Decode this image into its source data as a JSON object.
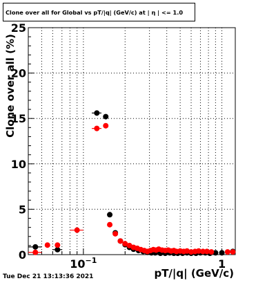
{
  "footer": {
    "timestamp": "Tue Dec 21 13:13:36 2021"
  },
  "colors": {
    "axes": "#000000",
    "grid": "#000000",
    "series_black": "#000000",
    "series_red": "#ff0000"
  },
  "chart_data": {
    "type": "scatter",
    "title": "Clone  over all for Global vs pT/|q| (GeV/c) at | η | <= 1.0",
    "xlabel": "pT/|q| (GeV/c)",
    "ylabel": "Clone  over all (%)",
    "x_scale": "log",
    "xlim": [
      0.04,
      1.25
    ],
    "ylim": [
      0,
      25
    ],
    "grid": true,
    "legend": "none",
    "y_ticks": [
      0,
      5,
      10,
      15,
      20,
      25
    ],
    "x_tick_labels": [
      {
        "value": 0.1,
        "base": "10",
        "exp": "−1"
      },
      {
        "value": 1,
        "label": "1"
      }
    ],
    "series": [
      {
        "color": "#000000",
        "points": [
          {
            "x": 0.045,
            "y": 0.85,
            "xlo": 0.04,
            "xhi": 0.05
          },
          {
            "x": 0.065,
            "y": 0.55,
            "xlo": 0.06,
            "xhi": 0.07
          },
          {
            "x": 0.125,
            "y": 15.6,
            "xlo": 0.115,
            "xhi": 0.135
          },
          {
            "x": 0.145,
            "y": 15.2,
            "xlo": 0.14,
            "xhi": 0.15
          },
          {
            "x": 0.155,
            "y": 4.4
          },
          {
            "x": 0.17,
            "y": 2.4
          },
          {
            "x": 0.185,
            "y": 1.5
          },
          {
            "x": 0.2,
            "y": 1.1
          },
          {
            "x": 0.215,
            "y": 0.8
          },
          {
            "x": 0.23,
            "y": 0.6
          },
          {
            "x": 0.25,
            "y": 0.45
          },
          {
            "x": 0.27,
            "y": 0.35
          },
          {
            "x": 0.29,
            "y": 0.25
          },
          {
            "x": 0.31,
            "y": 0.2
          },
          {
            "x": 0.33,
            "y": 0.2
          },
          {
            "x": 0.36,
            "y": 0.15
          },
          {
            "x": 0.39,
            "y": 0.15
          },
          {
            "x": 0.42,
            "y": 0.2
          },
          {
            "x": 0.45,
            "y": 0.15
          },
          {
            "x": 0.48,
            "y": 0.15
          },
          {
            "x": 0.52,
            "y": 0.15
          },
          {
            "x": 0.56,
            "y": 0.2
          },
          {
            "x": 0.6,
            "y": 0.15
          },
          {
            "x": 0.65,
            "y": 0.15
          },
          {
            "x": 0.7,
            "y": 0.2
          },
          {
            "x": 0.76,
            "y": 0.2
          },
          {
            "x": 0.82,
            "y": 0.15
          },
          {
            "x": 0.9,
            "y": 0.2
          },
          {
            "x": 1.0,
            "y": 0.2
          },
          {
            "x": 1.2,
            "y": 0.35
          }
        ]
      },
      {
        "color": "#ff0000",
        "points": [
          {
            "x": 0.045,
            "y": 0.25,
            "xlo": 0.04,
            "xhi": 0.05
          },
          {
            "x": 0.055,
            "y": 1.05
          },
          {
            "x": 0.065,
            "y": 1.05
          },
          {
            "x": 0.09,
            "y": 2.7,
            "xlo": 0.08,
            "xhi": 0.1
          },
          {
            "x": 0.125,
            "y": 13.9,
            "xlo": 0.115,
            "xhi": 0.135
          },
          {
            "x": 0.145,
            "y": 14.2,
            "xlo": 0.14,
            "xhi": 0.15
          },
          {
            "x": 0.155,
            "y": 3.3
          },
          {
            "x": 0.17,
            "y": 2.3
          },
          {
            "x": 0.185,
            "y": 1.5
          },
          {
            "x": 0.2,
            "y": 1.2
          },
          {
            "x": 0.215,
            "y": 1.0
          },
          {
            "x": 0.23,
            "y": 0.8
          },
          {
            "x": 0.245,
            "y": 0.7
          },
          {
            "x": 0.26,
            "y": 0.55
          },
          {
            "x": 0.275,
            "y": 0.45
          },
          {
            "x": 0.29,
            "y": 0.35
          },
          {
            "x": 0.305,
            "y": 0.45
          },
          {
            "x": 0.32,
            "y": 0.55
          },
          {
            "x": 0.335,
            "y": 0.5
          },
          {
            "x": 0.35,
            "y": 0.6
          },
          {
            "x": 0.37,
            "y": 0.5
          },
          {
            "x": 0.39,
            "y": 0.45
          },
          {
            "x": 0.41,
            "y": 0.5
          },
          {
            "x": 0.43,
            "y": 0.4
          },
          {
            "x": 0.45,
            "y": 0.45
          },
          {
            "x": 0.47,
            "y": 0.35
          },
          {
            "x": 0.5,
            "y": 0.4
          },
          {
            "x": 0.53,
            "y": 0.35
          },
          {
            "x": 0.56,
            "y": 0.4
          },
          {
            "x": 0.6,
            "y": 0.3
          },
          {
            "x": 0.64,
            "y": 0.35
          },
          {
            "x": 0.68,
            "y": 0.4
          },
          {
            "x": 0.73,
            "y": 0.35
          },
          {
            "x": 0.78,
            "y": 0.35
          },
          {
            "x": 0.84,
            "y": 0.3
          },
          {
            "x": 1.1,
            "y": 0.3
          },
          {
            "x": 1.2,
            "y": 0.3
          }
        ]
      }
    ]
  }
}
